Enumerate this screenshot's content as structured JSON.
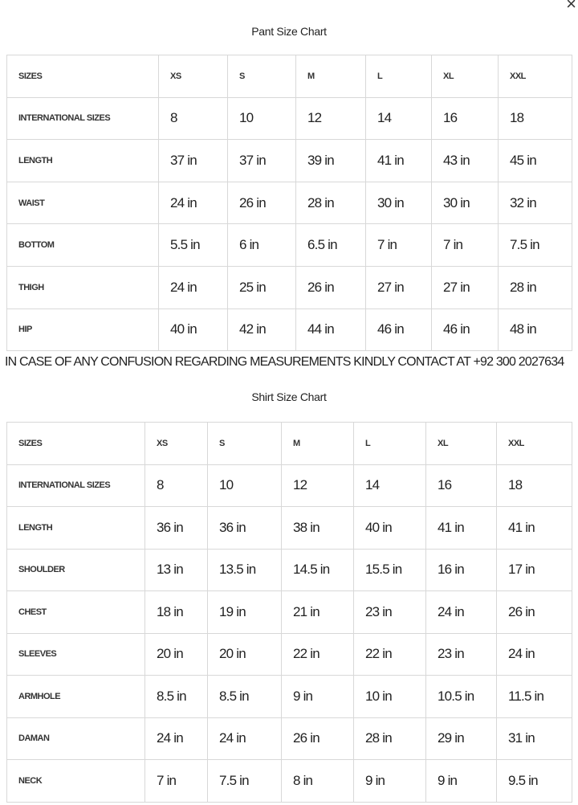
{
  "close_label": "×",
  "pant_chart": {
    "title": "Pant Size Chart",
    "header": [
      "SIZES",
      "XS",
      "S",
      "M",
      "L",
      "XL",
      "XXL"
    ],
    "rows": [
      [
        "INTERNATIONAL SIZES",
        "8",
        "10",
        "12",
        "14",
        "16",
        "18"
      ],
      [
        "LENGTH",
        "37 in",
        "37 in",
        "39 in",
        "41 in",
        "43 in",
        "45 in"
      ],
      [
        "WAIST",
        "24 in",
        "26 in",
        "28 in",
        "30 in",
        "30 in",
        "32 in"
      ],
      [
        "BOTTOM",
        "5.5 in",
        "6 in",
        "6.5 in",
        "7 in",
        "7 in",
        "7.5 in"
      ],
      [
        "THIGH",
        "24 in",
        "25 in",
        "26 in",
        "27 in",
        "27 in",
        "28 in"
      ],
      [
        "HIP",
        "40 in",
        "42 in",
        "44 in",
        "46 in",
        "46 in",
        "48 in"
      ]
    ]
  },
  "note": "IN CASE OF ANY CONFUSION REGARDING MEASUREMENTS KINDLY CONTACT AT +92 300 2027634",
  "shirt_chart": {
    "title": "Shirt Size Chart",
    "header": [
      "SIZES",
      "XS",
      "S",
      "M",
      "L",
      "XL",
      "XXL"
    ],
    "rows": [
      [
        "INTERNATIONAL SIZES",
        "8",
        "10",
        "12",
        "14",
        "16",
        "18"
      ],
      [
        "LENGTH",
        "36 in",
        "36 in",
        "38 in",
        "40 in",
        "41 in",
        "41 in"
      ],
      [
        "SHOULDER",
        "13 in",
        "13.5 in",
        "14.5 in",
        "15.5 in",
        "16 in",
        "17 in"
      ],
      [
        "CHEST",
        "18 in",
        "19 in",
        "21 in",
        "23 in",
        "24 in",
        "26 in"
      ],
      [
        "SLEEVES",
        "20 in",
        "20 in",
        "22 in",
        "22 in",
        "23 in",
        "24 in"
      ],
      [
        "ARMHOLE",
        "8.5 in",
        "8.5 in",
        "9 in",
        "10 in",
        "10.5 in",
        "11.5 in"
      ],
      [
        "DAMAN",
        "24 in",
        "24 in",
        "26 in",
        "28 in",
        "29 in",
        "31 in"
      ],
      [
        "NECK",
        "7 in",
        "7.5 in",
        "8 in",
        "9 in",
        "9 in",
        "9.5 in"
      ]
    ]
  }
}
